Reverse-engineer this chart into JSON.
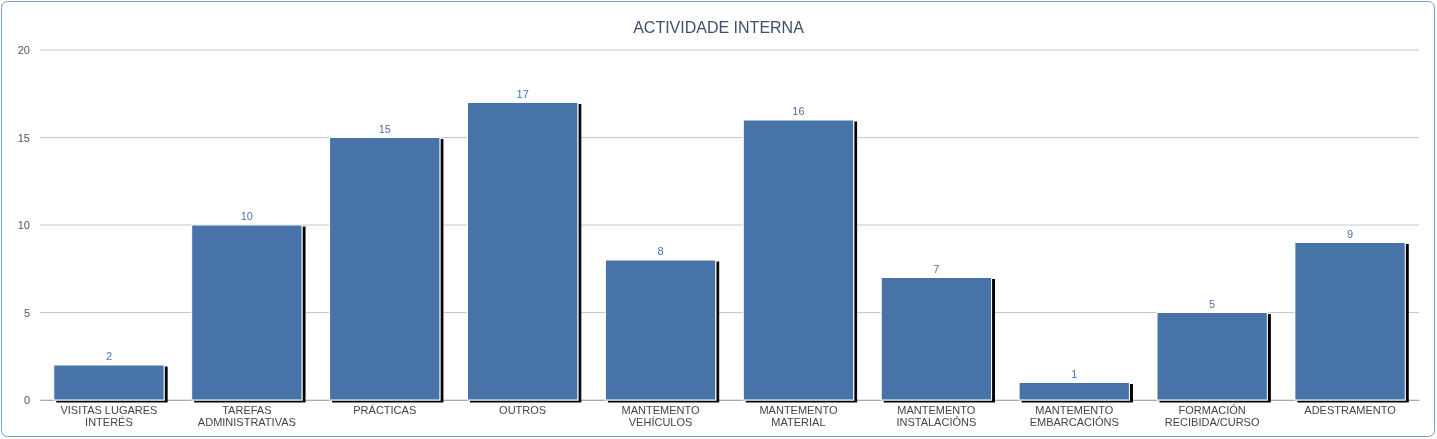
{
  "chart_data": {
    "type": "bar",
    "title": "ACTIVIDADE INTERNA",
    "categories": [
      "VISITAS LUGARES INTERÉS",
      "TAREFAS ADMINISTRATIVAS",
      "PRÁCTICAS",
      "OUTROS",
      "MANTEMENTO VEHÍCULOS",
      "MANTEMENTO MATERIAL",
      "MANTEMENTO INSTALACIÓNS",
      "MANTEMENTO EMBARCACIÓNS",
      "FORMACIÓN RECIBIDA/CURSO",
      "ADESTRAMENTO"
    ],
    "values": [
      2,
      10,
      15,
      17,
      8,
      16,
      7,
      1,
      5,
      9
    ],
    "color": "#4673a8",
    "ylim": [
      0,
      20
    ],
    "yticks": [
      0,
      5,
      10,
      15,
      20
    ],
    "grid": "y",
    "data_labels": true
  }
}
